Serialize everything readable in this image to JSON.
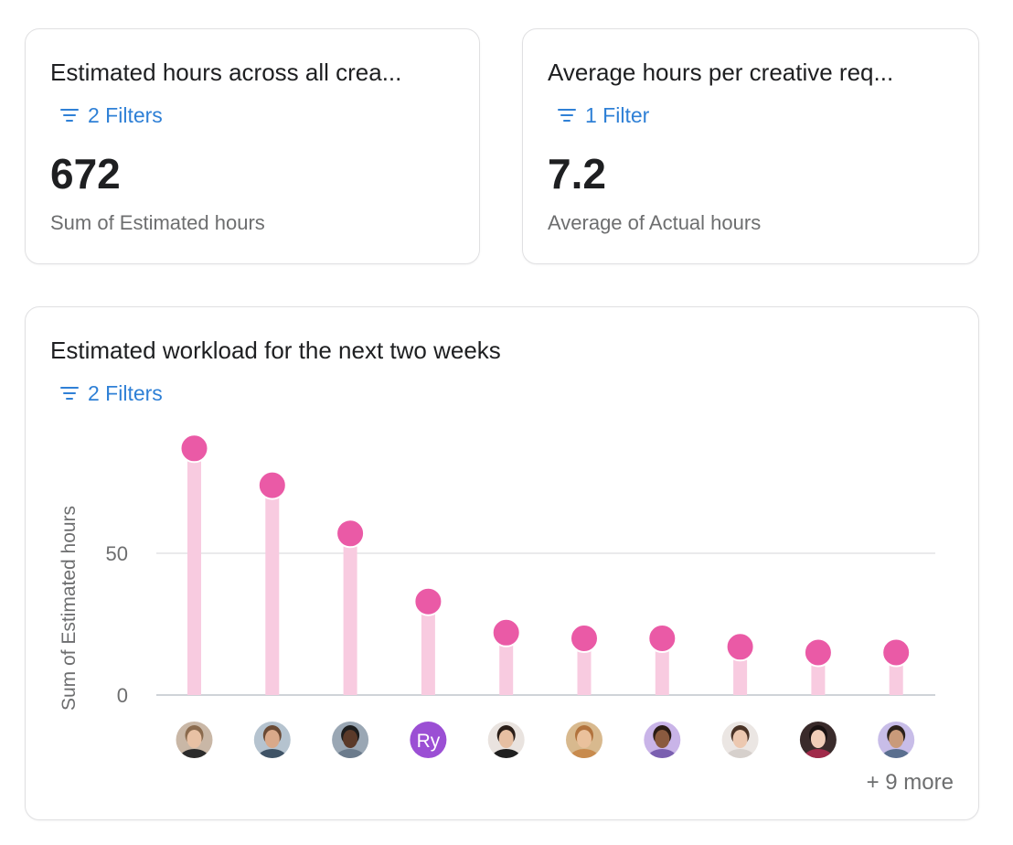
{
  "cards": [
    {
      "title": "Estimated hours across all crea...",
      "filter_label": "2 Filters",
      "value": "672",
      "subtitle": "Sum of Estimated hours"
    },
    {
      "title": "Average hours per creative req...",
      "filter_label": "1 Filter",
      "value": "7.2",
      "subtitle": "Average of Actual hours"
    }
  ],
  "chart_card": {
    "title": "Estimated workload for the next two weeks",
    "filter_label": "2 Filters",
    "more_label": "+ 9 more"
  },
  "chart_data": {
    "type": "bar",
    "style": "lollipop",
    "title": "Estimated workload for the next two weeks",
    "ylabel": "Sum of Estimated hours",
    "xlabel": "",
    "ylim": [
      0,
      90
    ],
    "yticks": [
      0,
      50
    ],
    "grid": true,
    "categories": [
      "",
      "",
      "",
      "Ry",
      "",
      "",
      "",
      "",
      "",
      ""
    ],
    "values": [
      87,
      74,
      57,
      33,
      22,
      20,
      20,
      17,
      15,
      15
    ],
    "avatars": [
      {
        "kind": "photo",
        "bg": "#c9b7a6",
        "skin": "#e8c1a4",
        "hair": "#8a6a4d",
        "shirt": "#2b2b2b"
      },
      {
        "kind": "photo",
        "bg": "#b5c3cf",
        "skin": "#d9a98a",
        "hair": "#6b4a34",
        "shirt": "#3f5366"
      },
      {
        "kind": "photo",
        "bg": "#9aa7b4",
        "skin": "#5b3a29",
        "hair": "#1d1d1d",
        "shirt": "#6b7b8c"
      },
      {
        "kind": "initials",
        "bg": "#9b4fd4",
        "text": "Ry"
      },
      {
        "kind": "photo",
        "bg": "#e9e3df",
        "skin": "#e6bfa2",
        "hair": "#2a1e18",
        "shirt": "#1f1f1f"
      },
      {
        "kind": "photo",
        "bg": "#d8b98e",
        "skin": "#eac19c",
        "hair": "#b2733d",
        "shirt": "#c88b4e"
      },
      {
        "kind": "photo",
        "bg": "#c9b4e8",
        "skin": "#8a5a3f",
        "hair": "#2a1b14",
        "shirt": "#7a5fb0"
      },
      {
        "kind": "photo",
        "bg": "#ebe6e3",
        "skin": "#ecc8b0",
        "hair": "#4a3326",
        "shirt": "#d6d0cc"
      },
      {
        "kind": "photo",
        "bg": "#3a2b2b",
        "skin": "#f0cdb8",
        "hair": "#1a1212",
        "shirt": "#a02a4a"
      },
      {
        "kind": "photo",
        "bg": "#c8bde8",
        "skin": "#c99a7a",
        "hair": "#2c211b",
        "shirt": "#5a6f8f"
      }
    ],
    "colors": {
      "dot": "#ea5aa6",
      "stem": "#f8cbe0",
      "grid": "#e3e4e6",
      "axis": "#cfd3d8",
      "tick": "#6d6e6f",
      "filter": "#2f80d6"
    }
  }
}
